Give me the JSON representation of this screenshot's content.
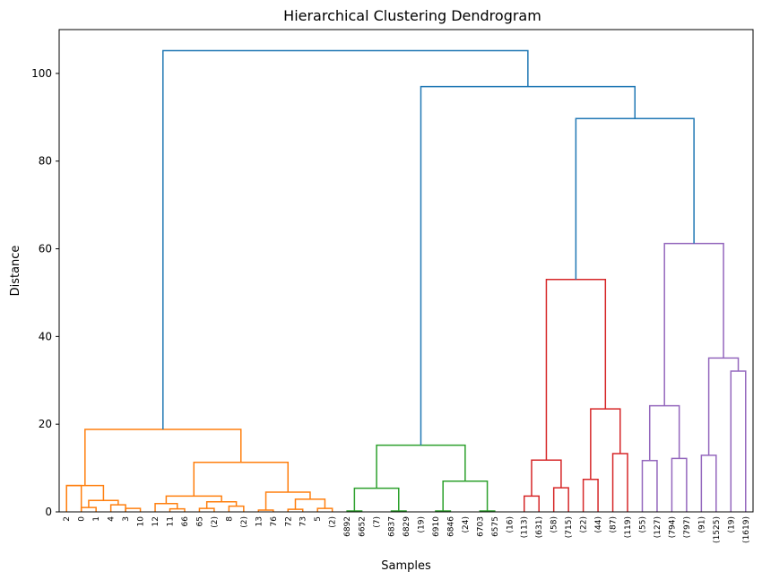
{
  "chart_data": {
    "type": "dendrogram",
    "title": "Hierarchical Clustering Dendrogram",
    "xlabel": "Samples",
    "ylabel": "Distance",
    "ylim": [
      0,
      110
    ],
    "yticks": [
      0,
      20,
      40,
      60,
      80,
      100
    ],
    "grid": false,
    "leaves": [
      "2",
      "0",
      "1",
      "4",
      "3",
      "10",
      "12",
      "11",
      "66",
      "65",
      "(2)",
      "8",
      "(2)",
      "13",
      "76",
      "72",
      "73",
      "5",
      "(2)",
      "6892",
      "6652",
      "(7)",
      "6837",
      "6829",
      "(19)",
      "6910",
      "6846",
      "(24)",
      "6703",
      "6575",
      "(16)",
      "(113)",
      "(631)",
      "(58)",
      "(715)",
      "(22)",
      "(44)",
      "(87)",
      "(119)",
      "(55)",
      "(127)",
      "(794)",
      "(797)",
      "(91)",
      "(1525)",
      "(19)",
      "(1619)"
    ],
    "colors": {
      "c1": "#ff7f0e",
      "c2": "#2ca02c",
      "c3": "#d62728",
      "c4": "#9467bd",
      "above": "#1f77b4"
    },
    "merges": [
      {
        "a": 0,
        "b": 1,
        "h": 6.0,
        "color": "c1",
        "id": "m0"
      },
      {
        "a": 1,
        "b": 2,
        "h": 1.0,
        "color": "c1",
        "id": "m1"
      },
      {
        "a": 3,
        "b": 4,
        "h": 1.6,
        "color": "c1",
        "id": "m2"
      },
      {
        "a": 4,
        "b": 5,
        "h": 0.8,
        "color": "c1",
        "id": "m3"
      },
      {
        "a": "m1",
        "b": "m2",
        "h": 2.6,
        "color": "c1",
        "id": "m4"
      },
      {
        "a": 0,
        "b": "m4",
        "h": 6.0,
        "color": "c1",
        "id": "m5"
      },
      {
        "a": 7,
        "b": 8,
        "h": 0.7,
        "color": "c1",
        "id": "m6"
      },
      {
        "a": 6,
        "b": "m6",
        "h": 1.9,
        "color": "c1",
        "id": "m7"
      },
      {
        "a": 9,
        "b": 10,
        "h": 0.8,
        "color": "c1",
        "id": "m8"
      },
      {
        "a": 11,
        "b": 12,
        "h": 1.3,
        "color": "c1",
        "id": "m9"
      },
      {
        "a": "m8",
        "b": "m9",
        "h": 2.3,
        "color": "c1",
        "id": "m10"
      },
      {
        "a": "m7",
        "b": "m10",
        "h": 3.6,
        "color": "c1",
        "id": "m11"
      },
      {
        "a": 13,
        "b": 14,
        "h": 0.4,
        "color": "c1",
        "id": "m12"
      },
      {
        "a": 15,
        "b": 16,
        "h": 0.6,
        "color": "c1",
        "id": "m13"
      },
      {
        "a": 18,
        "b": 17,
        "h": 0.8,
        "color": "c1",
        "id": "m14"
      },
      {
        "a": "m13",
        "b": "m14",
        "h": 2.9,
        "color": "c1",
        "id": "m15"
      },
      {
        "a": "m12",
        "b": "m15",
        "h": 4.5,
        "color": "c1",
        "id": "m16"
      },
      {
        "a": "m11",
        "b": "m16",
        "h": 11.3,
        "color": "c1",
        "id": "m17"
      },
      {
        "a": "m5",
        "b": "m17",
        "h": 18.8,
        "color": "c1",
        "id": "m18"
      },
      {
        "a": 19,
        "b": 20,
        "h": 0.2,
        "color": "c2",
        "id": "g0"
      },
      {
        "a": 22,
        "b": 23,
        "h": 0.2,
        "color": "c2",
        "id": "g1"
      },
      {
        "a": "g0",
        "b": "g1",
        "h": 5.4,
        "color": "c2",
        "id": "g2"
      },
      {
        "a": 25,
        "b": 26,
        "h": 0.2,
        "color": "c2",
        "id": "g3"
      },
      {
        "a": 28,
        "b": 29,
        "h": 0.2,
        "color": "c2",
        "id": "g4"
      },
      {
        "a": "g3",
        "b": "g4",
        "h": 7.0,
        "color": "c2",
        "id": "g5"
      },
      {
        "a": "g2",
        "b": "g5",
        "h": 15.2,
        "color": "c2",
        "id": "g6"
      },
      {
        "a": 31,
        "b": 32,
        "h": 3.6,
        "color": "c3",
        "id": "r0"
      },
      {
        "a": 33,
        "b": 34,
        "h": 5.5,
        "color": "c3",
        "id": "r1"
      },
      {
        "a": "r0",
        "b": "r1",
        "h": 11.8,
        "color": "c3",
        "id": "r2"
      },
      {
        "a": 35,
        "b": 36,
        "h": 7.4,
        "color": "c3",
        "id": "r3"
      },
      {
        "a": 37,
        "b": 38,
        "h": 13.3,
        "color": "c3",
        "id": "r4"
      },
      {
        "a": "r3",
        "b": "r4",
        "h": 23.5,
        "color": "c3",
        "id": "r5"
      },
      {
        "a": "r2",
        "b": "r5",
        "h": 53.0,
        "color": "c3",
        "id": "r6"
      },
      {
        "a": 39,
        "b": 40,
        "h": 11.7,
        "color": "c4",
        "id": "p0"
      },
      {
        "a": 41,
        "b": 42,
        "h": 12.2,
        "color": "c4",
        "id": "p1"
      },
      {
        "a": "p0",
        "b": "p1",
        "h": 24.2,
        "color": "c4",
        "id": "p2"
      },
      {
        "a": 43,
        "b": 44,
        "h": 12.9,
        "color": "c4",
        "id": "p3"
      },
      {
        "a": 45,
        "b": 46,
        "h": 32.1,
        "color": "c4",
        "id": "p4"
      },
      {
        "a": "p3",
        "b": "p4",
        "h": 35.1,
        "color": "c4",
        "id": "p5"
      },
      {
        "a": "p2",
        "b": "p5",
        "h": 61.2,
        "color": "c4",
        "id": "p6"
      },
      {
        "a": "r6",
        "b": "p6",
        "h": 89.7,
        "color": "above",
        "id": "t0"
      },
      {
        "a": "g6",
        "b": "t0",
        "h": 97.0,
        "color": "above",
        "id": "t1"
      },
      {
        "a": "m18",
        "b": "t1",
        "h": 105.2,
        "color": "above",
        "id": "t2"
      }
    ]
  }
}
